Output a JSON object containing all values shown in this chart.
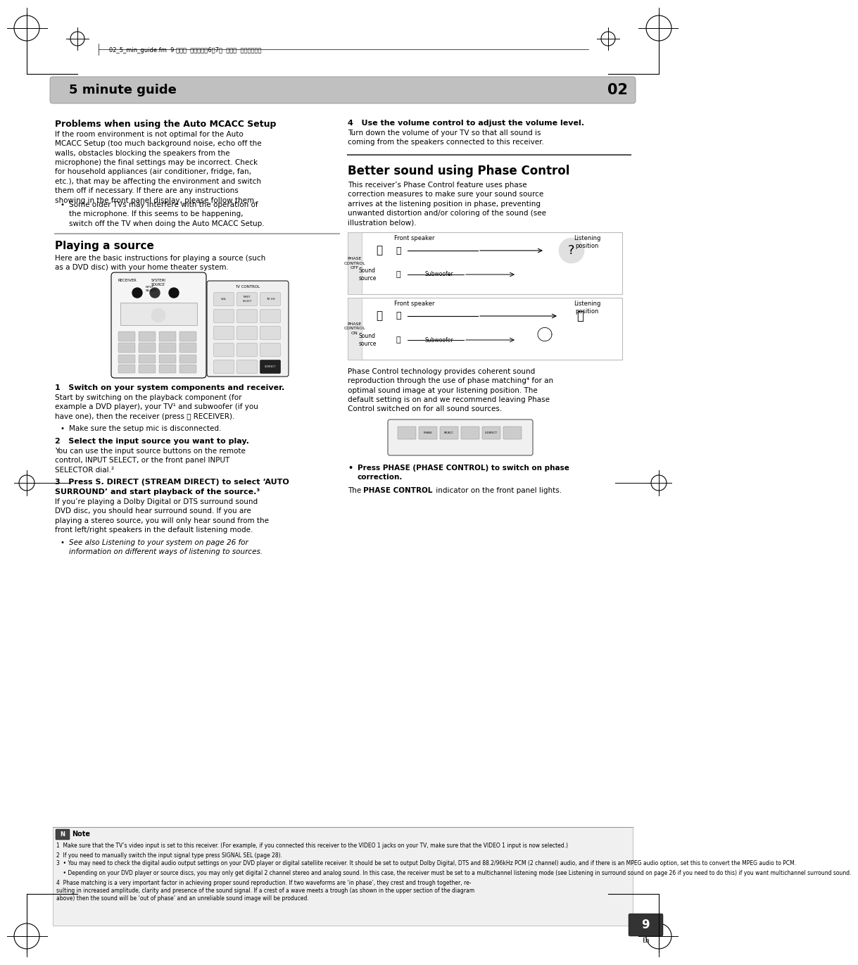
{
  "page_bg": "#ffffff",
  "top_label": "02_5_min_guide.fm  9 ページ  ２００５年6月7日  火曜日  午後１晏７分",
  "header_text": "5 minute guide",
  "header_number": "02",
  "section1_title": "Problems when using the Auto MCACC Setup",
  "section1_body": "If the room environment is not optimal for the Auto\nMCACC Setup (too much background noise, echo off the\nwalls, obstacles blocking the speakers from the\nmicrophone) the final settings may be incorrect. Check\nfor household appliances (air conditioner, fridge, fan,\netc.), that may be affecting the environment and switch\nthem off if necessary. If there are any instructions\nshowing in the front panel display, please follow them.",
  "section1_bullet": "Some older TVs may interfere with the operation of\nthe microphone. If this seems to be happening,\nswitch off the TV when doing the Auto MCACC Setup.",
  "section2_title": "Playing a source",
  "section2_body": "Here are the basic instructions for playing a source (such\nas a DVD disc) with your home theater system.",
  "step1_title": "1   Switch on your system components and receiver.",
  "step1_body": "Start by switching on the playback component (for\nexample a DVD player), your TV¹ and subwoofer (if you\nhave one), then the receiver (press ⏻ RECEIVER).",
  "step1_bullet": "Make sure the setup mic is disconnected.",
  "step2_title": "2   Select the input source you want to play.",
  "step2_body": "You can use the input source buttons on the remote\ncontrol, INPUT SELECT, or the front panel INPUT\nSELECTOR dial.²",
  "step3_title_a": "3   Press S. DIRECT (STREAM DIRECT) to select ‘AUTO",
  "step3_title_b": "SURROUND’ and start playback of the source.³",
  "step3_body": "If you’re playing a Dolby Digital or DTS surround sound\nDVD disc, you should hear surround sound. If you are\nplaying a stereo source, you will only hear sound from the\nfront left/right speakers in the default listening mode.",
  "step3_bullet": "See also Listening to your system on page 26 for\ninformation on different ways of listening to sources.",
  "s4_title": "4   Use the volume control to adjust the volume level.",
  "s4_body": "Turn down the volume of your TV so that all sound is\ncoming from the speakers connected to this receiver.",
  "bspc_title": "Better sound using Phase Control",
  "bspc_body": "This receiver’s Phase Control feature uses phase\ncorrection measures to make sure your sound source\narrives at the listening position in phase, preventing\nunwanted distortion and/or coloring of the sound (see\nillustration below).",
  "phase_off_label": "PHASE\nCONTROL\nOFF",
  "phase_on_label": "PHASE\nCONTROL\nON",
  "front_speaker": "Front speaker",
  "listening_pos": "Listening\nposition",
  "sound_source": "Sound\nsource",
  "subwoofer": "Subwoofer",
  "phase_tech_text": "Phase Control technology provides coherent sound\nreproduction through the use of phase matching⁴ for an\noptimal sound image at your listening position. The\ndefault setting is on and we recommend leaving Phase\nControl switched on for all sound sources.",
  "phase_bullet_bold": "Press PHASE (PHASE CONTROL) to switch on phase\ncorrection.",
  "phase_body2": "The PHASE CONTROL indicator on the front panel lights.",
  "note_title": "Note",
  "note1": "1  Make sure that the TV’s video input is set to this receiver. (For example, if you connected this receiver to the VIDEO 1 jacks on your TV, make sure that the VIDEO 1 input is now selected.)",
  "note2": "2  If you need to manually switch the input signal type press SIGNAL SEL (page 28).",
  "note3a": "3  • You may need to check the digital audio output settings on your DVD player or digital satellite receiver. It should be set to output Dolby Digital, DTS and 88.2/96kHz PCM (2 channel) audio, and if there is an MPEG audio option, set this to convert the MPEG audio to PCM.",
  "note3b": "    • Depending on your DVD player or source discs, you may only get digital 2 channel stereo and analog sound. In this case, the receiver must be set to a multichannel listening mode (see Listening in surround sound on page 26 if you need to do this) if you want multichannel surround sound.",
  "note4": "4  Phase matching is a very important factor in achieving proper sound reproduction. If two waveforms are ‘in phase’, they crest and trough together, re-\nsulting in increased amplitude, clarity and presence of the sound signal. If a crest of a wave meets a trough (as shown in the upper section of the diagram\nabove) then the sound will be ‘out of phase’ and an unreliable sound image will be produced.",
  "page_number": "9",
  "page_lang": "En",
  "header_color": "#c0c0c0",
  "divider_color": "#aaaaaa",
  "note_bg": "#f0f0f0"
}
